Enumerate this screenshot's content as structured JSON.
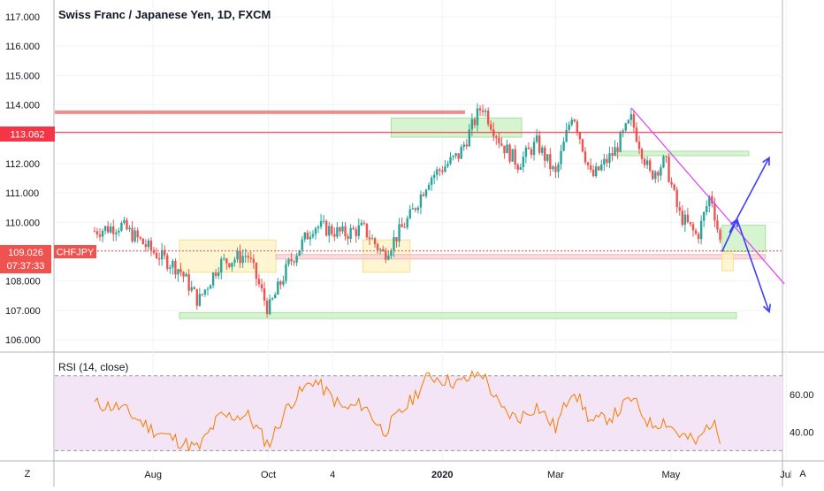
{
  "header": {
    "title": "Swiss Franc / Japanese Yen, 1D, FXCM"
  },
  "price_badges": {
    "red_line_price": "113.062",
    "symbol": "CHFJPY",
    "current_price": "109.026",
    "countdown": "07:37:33"
  },
  "rsi": {
    "label": "RSI (14, close)"
  },
  "buttons": {
    "left_scale": "Z",
    "auto_scale": "A"
  },
  "colors": {
    "up_candle": "#26a69a",
    "down_candle": "#ef5350",
    "resistance_line": "#f23645",
    "channel_line": "#e040fb",
    "arrows": "#3d3dff",
    "rsi_line": "#f57c00",
    "rsi_band": "#f3e5f5",
    "zone_green": "#c8f0c0",
    "zone_yellow": "#fdf3c4",
    "zone_pink": "#f8d0d0"
  },
  "chart_data": [
    {
      "type": "candlestick",
      "title": "Swiss Franc / Japanese Yen, 1D, FXCM",
      "ylim": [
        106.0,
        117.0
      ],
      "y_ticks": [
        "117.000",
        "116.000",
        "115.000",
        "114.000",
        "113.000",
        "112.000",
        "111.000",
        "110.000",
        "109.000",
        "108.000",
        "107.000",
        "106.000"
      ],
      "x_ticks": [
        "Aug",
        "Oct",
        "4",
        "2020",
        "Mar",
        "May",
        "Jul"
      ],
      "current_price": 109.026,
      "symbol": "CHFJPY",
      "horizontal_levels": [
        113.062,
        113.75,
        108.82
      ],
      "close_series": [
        {
          "d": "Jul 1",
          "v": 109.7
        },
        {
          "d": "Jul 15",
          "v": 109.9
        },
        {
          "d": "Aug 1",
          "v": 109.0
        },
        {
          "d": "Aug 15",
          "v": 108.4
        },
        {
          "d": "Aug 25",
          "v": 107.3
        },
        {
          "d": "Sep 5",
          "v": 108.6
        },
        {
          "d": "Sep 20",
          "v": 108.9
        },
        {
          "d": "Oct 1",
          "v": 107.0
        },
        {
          "d": "Oct 12",
          "v": 108.6
        },
        {
          "d": "Oct 25",
          "v": 109.9
        },
        {
          "d": "Nov 10",
          "v": 109.6
        },
        {
          "d": "Nov 20",
          "v": 109.8
        },
        {
          "d": "Dec 1",
          "v": 108.9
        },
        {
          "d": "Dec 15",
          "v": 110.2
        },
        {
          "d": "Dec 25",
          "v": 111.5
        },
        {
          "d": "Jan 10",
          "v": 112.3
        },
        {
          "d": "Jan 22",
          "v": 114.0
        },
        {
          "d": "Feb 1",
          "v": 112.7
        },
        {
          "d": "Feb 10",
          "v": 112.0
        },
        {
          "d": "Feb 20",
          "v": 112.7
        },
        {
          "d": "Mar 1",
          "v": 111.6
        },
        {
          "d": "Mar 10",
          "v": 113.8
        },
        {
          "d": "Mar 20",
          "v": 111.5
        },
        {
          "d": "Apr 1",
          "v": 112.4
        },
        {
          "d": "Apr 10",
          "v": 113.5
        },
        {
          "d": "Apr 20",
          "v": 111.6
        },
        {
          "d": "Apr 28",
          "v": 112.1
        },
        {
          "d": "May 5",
          "v": 110.3
        },
        {
          "d": "May 15",
          "v": 109.5
        },
        {
          "d": "May 22",
          "v": 111.0
        },
        {
          "d": "May 28",
          "v": 109.0
        }
      ],
      "zones": [
        {
          "color": "green",
          "y": [
            112.9,
            113.55
          ],
          "x": [
            "Dec 5",
            "Feb 12"
          ]
        },
        {
          "color": "yellow",
          "y": [
            108.3,
            109.4
          ],
          "x": [
            "Aug 15",
            "Oct 5"
          ]
        },
        {
          "color": "yellow",
          "y": [
            108.3,
            109.4
          ],
          "x": [
            "Nov 20",
            "Dec 15"
          ]
        },
        {
          "color": "pink",
          "y": [
            108.75,
            108.9
          ],
          "x": [
            "Oct 5",
            "Jun 20"
          ]
        },
        {
          "color": "green",
          "y": [
            106.72,
            106.92
          ],
          "x": [
            "Aug 15",
            "Jul 1"
          ]
        },
        {
          "color": "green",
          "y": [
            112.27,
            112.42
          ],
          "x": [
            "Apr 1",
            "Jul 1"
          ]
        },
        {
          "color": "green",
          "y": [
            109.0,
            109.9
          ],
          "x": [
            "May 28",
            "Jun 20"
          ]
        },
        {
          "color": "yellow",
          "y": [
            108.35,
            108.95
          ],
          "x": [
            "May 28",
            "Jun 3"
          ]
        }
      ],
      "projections": {
        "up": [
          {
            "d": "May 28",
            "v": 109.0
          },
          {
            "d": "Jun 5",
            "v": 110.1
          },
          {
            "d": "Jun 1",
            "v": 109.65
          },
          {
            "d": "Jun 22",
            "v": 112.2
          }
        ],
        "down": [
          {
            "d": "Jun 5",
            "v": 110.1
          },
          {
            "d": "Jun 22",
            "v": 106.95
          }
        ]
      },
      "trendline": [
        {
          "d": "Apr 10",
          "v": 113.9
        },
        {
          "d": "Jun 30",
          "v": 107.9
        }
      ]
    },
    {
      "type": "line",
      "title": "RSI (14, close)",
      "ylim": [
        25,
        77
      ],
      "y_ticks": [
        "60.00",
        "40.00"
      ],
      "band": [
        30,
        70
      ],
      "series": [
        {
          "d": "Jul 1",
          "v": 55
        },
        {
          "d": "Jul 15",
          "v": 53
        },
        {
          "d": "Aug 1",
          "v": 41
        },
        {
          "d": "Aug 15",
          "v": 35
        },
        {
          "d": "Aug 25",
          "v": 31
        },
        {
          "d": "Sep 5",
          "v": 48
        },
        {
          "d": "Sep 20",
          "v": 49
        },
        {
          "d": "Oct 1",
          "v": 33
        },
        {
          "d": "Oct 12",
          "v": 55
        },
        {
          "d": "Oct 25",
          "v": 68
        },
        {
          "d": "Nov 10",
          "v": 52
        },
        {
          "d": "Nov 20",
          "v": 55
        },
        {
          "d": "Dec 1",
          "v": 40
        },
        {
          "d": "Dec 15",
          "v": 56
        },
        {
          "d": "Dec 25",
          "v": 70
        },
        {
          "d": "Jan 10",
          "v": 66
        },
        {
          "d": "Jan 22",
          "v": 72
        },
        {
          "d": "Feb 1",
          "v": 52
        },
        {
          "d": "Feb 10",
          "v": 47
        },
        {
          "d": "Feb 20",
          "v": 54
        },
        {
          "d": "Mar 1",
          "v": 42
        },
        {
          "d": "Mar 10",
          "v": 64
        },
        {
          "d": "Mar 20",
          "v": 45
        },
        {
          "d": "Apr 1",
          "v": 49
        },
        {
          "d": "Apr 10",
          "v": 58
        },
        {
          "d": "Apr 20",
          "v": 44
        },
        {
          "d": "Apr 28",
          "v": 46
        },
        {
          "d": "May 5",
          "v": 39
        },
        {
          "d": "May 15",
          "v": 34
        },
        {
          "d": "May 22",
          "v": 46
        },
        {
          "d": "May 28",
          "v": 36
        }
      ]
    }
  ]
}
